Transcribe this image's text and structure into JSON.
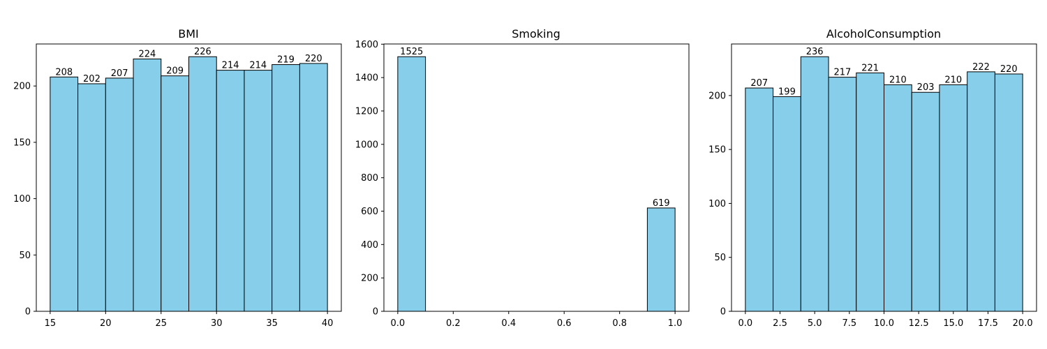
{
  "chart_data": [
    {
      "type": "bar",
      "title": "BMI",
      "bin_edges": [
        15,
        17.5,
        20,
        22.5,
        25,
        27.5,
        30,
        32.5,
        35,
        37.5,
        40
      ],
      "values": [
        208,
        202,
        207,
        224,
        209,
        226,
        214,
        214,
        219,
        220
      ],
      "xlim": [
        13.75,
        41.25
      ],
      "ylim": [
        0,
        237.3
      ],
      "xticks": [
        15,
        20,
        25,
        30,
        35,
        40
      ],
      "xtick_labels": [
        "15",
        "20",
        "25",
        "30",
        "35",
        "40"
      ],
      "yticks": [
        0,
        50,
        100,
        150,
        200
      ],
      "ytick_labels": [
        "0",
        "50",
        "100",
        "150",
        "200"
      ],
      "bar_color": "#87ceeb",
      "edge_color": "#000000",
      "grid": false
    },
    {
      "type": "bar",
      "title": "Smoking",
      "bin_edges": [
        0,
        0.1,
        0.2,
        0.3,
        0.4,
        0.5,
        0.6,
        0.7,
        0.8,
        0.9,
        1.0
      ],
      "values": [
        1525,
        0,
        0,
        0,
        0,
        0,
        0,
        0,
        0,
        619
      ],
      "xlim": [
        -0.05,
        1.05
      ],
      "ylim": [
        0,
        1601.25
      ],
      "xticks": [
        0,
        0.2,
        0.4,
        0.6,
        0.8,
        1.0
      ],
      "xtick_labels": [
        "0.0",
        "0.2",
        "0.4",
        "0.6",
        "0.8",
        "1.0"
      ],
      "yticks": [
        0,
        200,
        400,
        600,
        800,
        1000,
        1200,
        1400,
        1600
      ],
      "ytick_labels": [
        "0",
        "200",
        "400",
        "600",
        "800",
        "1000",
        "1200",
        "1400",
        "1600"
      ],
      "value_labels": [
        "1525",
        "",
        "",
        "",
        "",
        "",
        "",
        "",
        "",
        "619"
      ],
      "bar_color": "#87ceeb",
      "edge_color": "#000000",
      "grid": false
    },
    {
      "type": "bar",
      "title": "AlcoholConsumption",
      "bin_edges": [
        0,
        2,
        4,
        6,
        8,
        10,
        12,
        14,
        16,
        18,
        20
      ],
      "values": [
        207,
        199,
        236,
        217,
        221,
        210,
        203,
        210,
        222,
        220
      ],
      "xlim": [
        -1,
        21
      ],
      "ylim": [
        0,
        247.8
      ],
      "xticks": [
        0,
        2.5,
        5,
        7.5,
        10,
        12.5,
        15,
        17.5,
        20
      ],
      "xtick_labels": [
        "0.0",
        "2.5",
        "5.0",
        "7.5",
        "10.0",
        "12.5",
        "15.0",
        "17.5",
        "20.0"
      ],
      "yticks": [
        0,
        50,
        100,
        150,
        200
      ],
      "ytick_labels": [
        "0",
        "50",
        "100",
        "150",
        "200"
      ],
      "bar_color": "#87ceeb",
      "edge_color": "#000000",
      "grid": false
    }
  ]
}
